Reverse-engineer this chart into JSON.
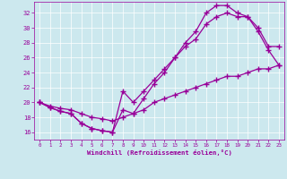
{
  "bg_color": "#cce8ee",
  "line_color": "#990099",
  "grid_color": "#ffffff",
  "xlabel": "Windchill (Refroidissement éolien,°C)",
  "xlabel_color": "#990099",
  "tick_color": "#990099",
  "xlim": [
    -0.5,
    23.5
  ],
  "ylim": [
    15.0,
    33.5
  ],
  "yticks": [
    16,
    18,
    20,
    22,
    24,
    26,
    28,
    30,
    32
  ],
  "xticks": [
    0,
    1,
    2,
    3,
    4,
    5,
    6,
    7,
    8,
    9,
    10,
    11,
    12,
    13,
    14,
    15,
    16,
    17,
    18,
    19,
    20,
    21,
    22,
    23
  ],
  "curve_bottom_x": [
    0,
    1,
    2,
    3,
    4,
    5,
    6,
    7,
    8,
    9,
    10,
    11,
    12,
    13,
    14,
    15,
    16,
    17,
    18,
    19,
    20,
    21,
    22,
    23
  ],
  "curve_bottom_y": [
    20.0,
    19.5,
    19.2,
    19.0,
    18.5,
    18.0,
    17.8,
    17.5,
    18.0,
    18.5,
    19.0,
    20.0,
    20.5,
    21.0,
    21.5,
    22.0,
    22.5,
    23.0,
    23.5,
    23.5,
    24.0,
    24.5,
    24.5,
    25.0
  ],
  "curve_mid_x": [
    0,
    1,
    2,
    3,
    4,
    5,
    6,
    7,
    8,
    9,
    10,
    11,
    12,
    13,
    14,
    15,
    16,
    17,
    18,
    19,
    20,
    21,
    22,
    23
  ],
  "curve_mid_y": [
    20.0,
    19.3,
    18.8,
    18.5,
    17.2,
    16.5,
    16.2,
    16.0,
    21.5,
    20.0,
    21.5,
    23.0,
    24.5,
    26.0,
    27.5,
    28.5,
    30.5,
    31.5,
    32.0,
    31.5,
    31.5,
    30.0,
    27.5,
    27.5
  ],
  "curve_top_x": [
    0,
    1,
    2,
    3,
    4,
    5,
    6,
    7,
    8,
    9,
    10,
    11,
    12,
    13,
    14,
    15,
    16,
    17,
    18,
    19,
    20,
    21,
    22,
    23
  ],
  "curve_top_y": [
    20.0,
    19.3,
    18.8,
    18.5,
    17.2,
    16.5,
    16.2,
    16.0,
    19.0,
    18.5,
    20.5,
    22.5,
    24.0,
    26.0,
    28.0,
    29.5,
    32.0,
    33.0,
    33.0,
    32.0,
    31.5,
    29.5,
    27.0,
    25.0
  ]
}
